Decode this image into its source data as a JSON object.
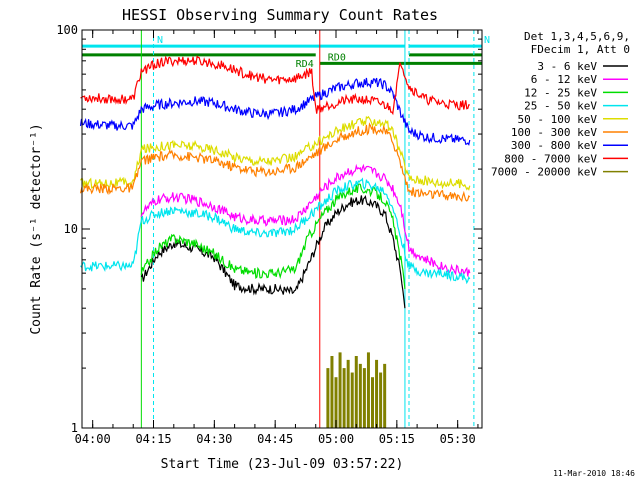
{
  "chart_data": {
    "type": "line",
    "title": "HESSI Observing Summary Count Rates",
    "xlabel": "Start Time (23-Jul-09 03:57:22)",
    "ylabel": "Count Rate (s⁻¹ detector⁻¹)",
    "x_scale": "time",
    "y_scale": "log",
    "xlim": [
      "03:57:22",
      "05:36:00"
    ],
    "ylim": [
      1,
      100
    ],
    "x_ticks": [
      "04:00",
      "04:15",
      "04:30",
      "04:45",
      "05:00",
      "05:15",
      "05:30"
    ],
    "y_ticks": [
      "1",
      "10",
      "100"
    ],
    "legend_title": [
      "Det 1,3,4,5,6,9,",
      "FDecim 1, Att 0"
    ],
    "legend_position": "right",
    "footer": "11-Mar-2010 18:46",
    "series": [
      {
        "name": "3 - 6 keV",
        "color": "#000000",
        "x": [
          "04:12",
          "04:16",
          "04:20",
          "04:25",
          "04:30",
          "04:35",
          "04:40",
          "04:45",
          "04:50",
          "04:53",
          "04:57",
          "05:00",
          "05:03",
          "05:06",
          "05:09",
          "05:12",
          "05:14",
          "05:16",
          "05:17"
        ],
        "y": [
          5.5,
          7.5,
          8.5,
          8.0,
          7.2,
          5.2,
          5.0,
          5.0,
          4.8,
          6.5,
          10,
          12,
          13.5,
          14,
          13.5,
          12,
          9,
          6,
          4
        ]
      },
      {
        "name": "6 - 12 keV",
        "color": "#ff00ff",
        "x": [
          "04:12",
          "04:16",
          "04:20",
          "04:25",
          "04:30",
          "04:35",
          "04:40",
          "04:45",
          "04:50",
          "04:53",
          "04:57",
          "05:00",
          "05:03",
          "05:06",
          "05:09",
          "05:12",
          "05:14",
          "05:16",
          "05:18",
          "05:22",
          "05:26",
          "05:30",
          "05:33"
        ],
        "y": [
          12,
          14,
          14.5,
          14,
          13,
          11.5,
          11,
          11,
          11.2,
          13,
          16,
          18,
          19.5,
          20,
          19.5,
          18,
          16,
          13,
          8,
          7,
          6.5,
          6.2,
          6
        ]
      },
      {
        "name": "12 - 25 keV",
        "color": "#00dd00",
        "x": [
          "04:12",
          "04:16",
          "04:20",
          "04:25",
          "04:30",
          "04:35",
          "04:40",
          "04:45",
          "04:50",
          "04:53",
          "04:57",
          "05:00",
          "05:03",
          "05:06",
          "05:09",
          "05:12",
          "05:14",
          "05:16",
          "05:17"
        ],
        "y": [
          6,
          8,
          9,
          8.5,
          7.5,
          6.3,
          6,
          6,
          6.3,
          9,
          12,
          14,
          15.5,
          16,
          15.5,
          14,
          11,
          7,
          5
        ]
      },
      {
        "name": "25 - 50 keV",
        "color": "#00e5ee",
        "x": [
          "03:57",
          "04:05",
          "04:10",
          "04:12",
          "04:16",
          "04:20",
          "04:25",
          "04:30",
          "04:35",
          "04:40",
          "04:45",
          "04:50",
          "04:53",
          "04:57",
          "05:00",
          "05:03",
          "05:06",
          "05:09",
          "05:12",
          "05:14",
          "05:16",
          "05:18",
          "05:22",
          "05:26",
          "05:30",
          "05:33"
        ],
        "y": [
          6.5,
          6.5,
          6.5,
          11,
          12,
          12.5,
          12,
          11.5,
          10,
          9.5,
          9.5,
          10,
          11.5,
          13.5,
          15.5,
          16.5,
          17,
          16.5,
          15.5,
          13,
          9,
          6.5,
          6,
          6,
          5.8,
          5.6
        ]
      },
      {
        "name": "50 - 100 keV",
        "color": "#dddd00",
        "x": [
          "03:57",
          "04:05",
          "04:10",
          "04:12",
          "04:16",
          "04:20",
          "04:25",
          "04:30",
          "04:35",
          "04:40",
          "04:45",
          "04:50",
          "04:55",
          "05:00",
          "05:05",
          "05:09",
          "05:12",
          "05:14",
          "05:16",
          "05:18",
          "05:22",
          "05:26",
          "05:30",
          "05:33"
        ],
        "y": [
          17,
          17,
          17,
          25,
          26,
          26.5,
          26,
          25,
          23,
          22,
          22,
          23,
          27,
          31,
          34,
          35,
          34,
          31,
          24,
          18,
          17.5,
          17,
          17,
          16.5
        ]
      },
      {
        "name": "100 - 300 keV",
        "color": "#ff8000",
        "x": [
          "03:57",
          "04:05",
          "04:10",
          "04:12",
          "04:16",
          "04:20",
          "04:25",
          "04:30",
          "04:35",
          "04:40",
          "04:45",
          "04:50",
          "04:55",
          "05:00",
          "05:05",
          "05:09",
          "05:12",
          "05:14",
          "05:16",
          "05:18",
          "05:22",
          "05:26",
          "05:30",
          "05:33"
        ],
        "y": [
          16,
          16,
          16,
          22,
          23,
          23.5,
          23,
          22,
          20.5,
          19.5,
          19.5,
          20.5,
          24,
          28,
          31,
          32,
          31,
          28,
          21,
          15.5,
          15,
          14.8,
          14.5,
          14.5
        ]
      },
      {
        "name": "300 - 800 keV",
        "color": "#0000ff",
        "x": [
          "03:57",
          "04:05",
          "04:10",
          "04:12",
          "04:16",
          "04:20",
          "04:25",
          "04:30",
          "04:35",
          "04:40",
          "04:45",
          "04:50",
          "04:55",
          "05:00",
          "05:05",
          "05:09",
          "05:12",
          "05:14",
          "05:16",
          "05:18",
          "05:22",
          "05:26",
          "05:30",
          "05:33"
        ],
        "y": [
          34,
          33,
          33,
          40,
          42,
          43,
          44,
          43,
          40,
          38,
          38,
          40,
          46,
          51,
          54,
          55,
          53,
          48,
          38,
          31,
          29,
          28.5,
          28,
          28
        ]
      },
      {
        "name": "800 - 7000 keV",
        "color": "#ff0000",
        "x": [
          "03:57",
          "04:05",
          "04:10",
          "04:12",
          "04:16",
          "04:20",
          "04:25",
          "04:30",
          "04:35",
          "04:40",
          "04:45",
          "04:50",
          "04:54",
          "04:55",
          "04:58",
          "05:02",
          "05:06",
          "05:09",
          "05:12",
          "05:14",
          "05:16",
          "05:18",
          "05:22",
          "05:26",
          "05:30",
          "05:33"
        ],
        "y": [
          46,
          45,
          45,
          62,
          68,
          70,
          70,
          68,
          63,
          58,
          56,
          57,
          62,
          40,
          42,
          44,
          45,
          44,
          42,
          40,
          70,
          52,
          45,
          43,
          42,
          42
        ]
      },
      {
        "name": "7000 - 20000 keV",
        "color": "#808000",
        "x": [
          "04:58",
          "04:59",
          "05:00",
          "05:01",
          "05:02",
          "05:03",
          "05:04",
          "05:05",
          "05:06",
          "05:07",
          "05:08",
          "05:09",
          "05:10",
          "05:11",
          "05:12"
        ],
        "y": [
          2.0,
          2.3,
          1.8,
          2.4,
          2.0,
          2.2,
          1.9,
          2.3,
          2.1,
          2.0,
          2.4,
          1.8,
          2.2,
          1.9,
          2.1
        ]
      }
    ],
    "annotations": [
      {
        "label": "N",
        "color": "#00e5ee",
        "x_start": "03:57:22",
        "x_end": "05:17",
        "y": 83
      },
      {
        "label": "N",
        "color": "#00e5ee",
        "x_start": "05:18",
        "x_end": "05:36",
        "y": 83
      },
      {
        "label": "RD0",
        "color": "#008000",
        "x_start": "04:56",
        "x_end": "05:36",
        "y": 68
      },
      {
        "label": "RD4",
        "color": "#008000",
        "x_start": "03:57:22",
        "x_end": "04:55",
        "y": 75
      },
      {
        "label": "",
        "color": "#008000",
        "x_start": "05:18",
        "x_end": "05:36",
        "y": 75
      }
    ],
    "vlines": [
      {
        "x": "04:12",
        "color": "#00dd00",
        "style": "solid"
      },
      {
        "x": "04:15",
        "color": "#00e5ee",
        "style": "dashed"
      },
      {
        "x": "04:56",
        "color": "#ff0000",
        "style": "solid"
      },
      {
        "x": "05:17",
        "color": "#00e5ee",
        "style": "solid"
      },
      {
        "x": "05:18",
        "color": "#00e5ee",
        "style": "dashed"
      },
      {
        "x": "05:34",
        "color": "#00e5ee",
        "style": "dashed"
      }
    ]
  }
}
